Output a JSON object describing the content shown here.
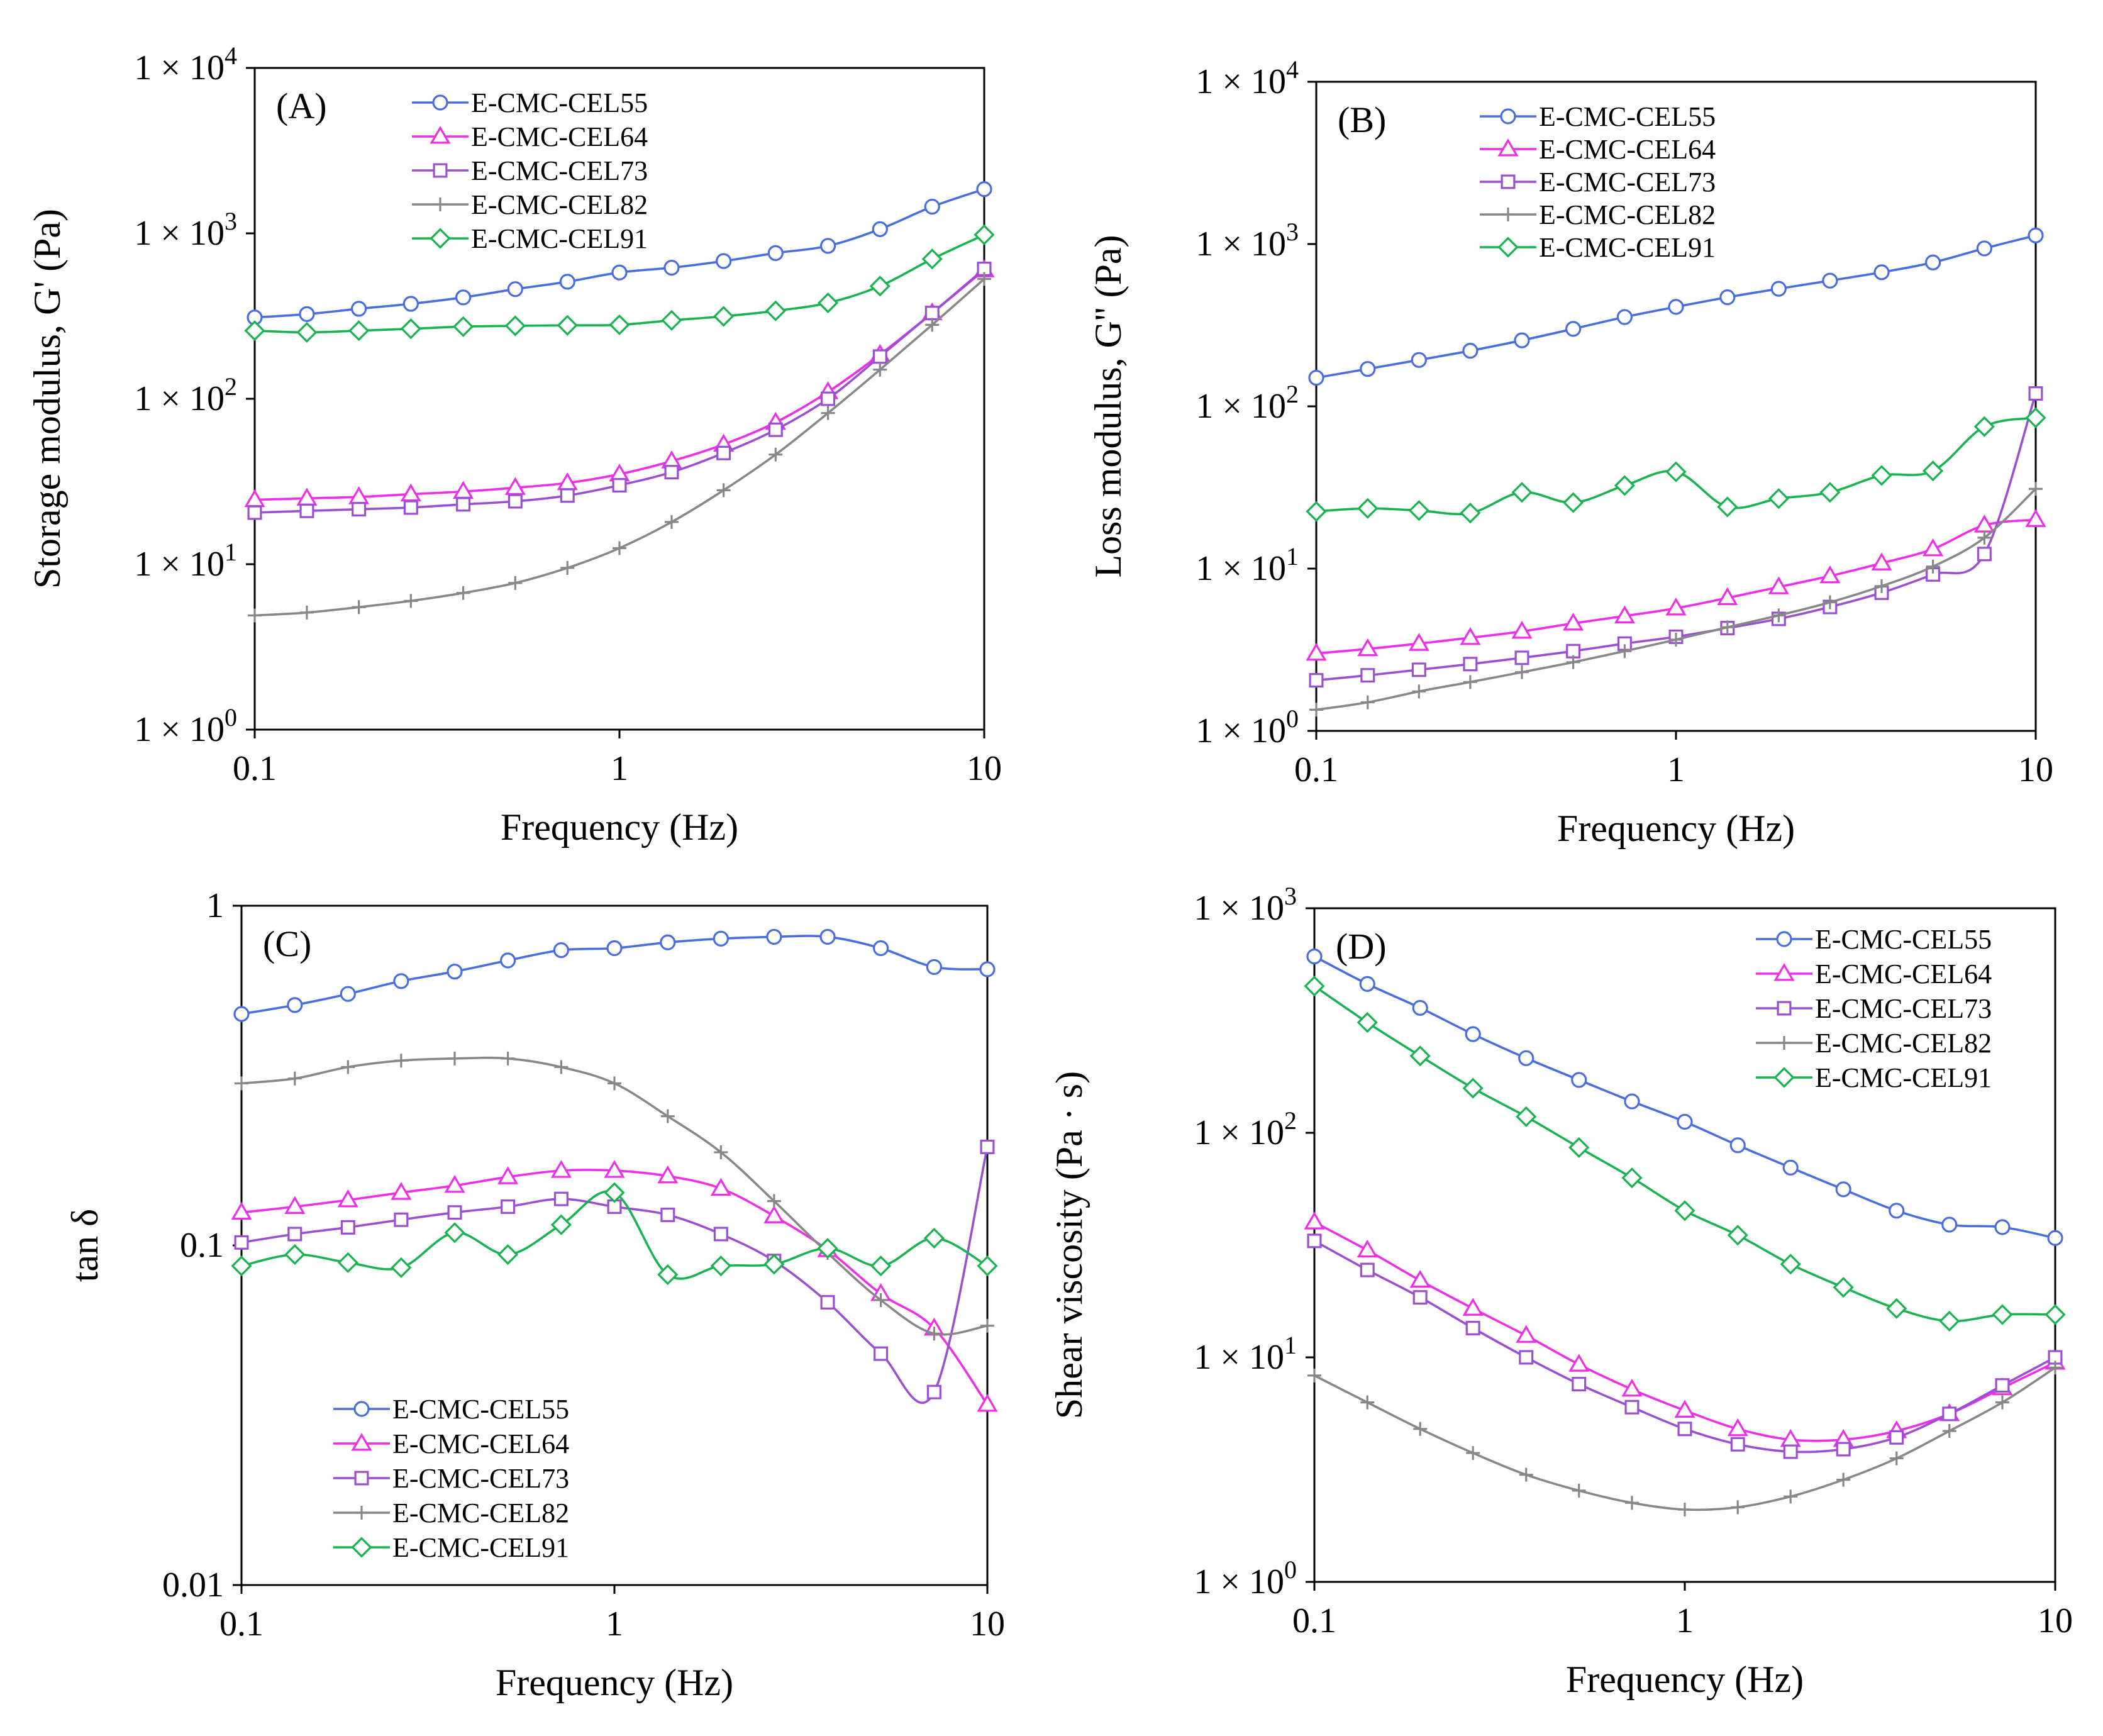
{
  "colors": {
    "E-CMC-CEL55": "#4a6ee0",
    "E-CMC-CEL64": "#ee2ee8",
    "E-CMC-CEL73": "#9b4fd1",
    "E-CMC-CEL82": "#888888",
    "E-CMC-CEL91": "#19b34f"
  },
  "markers": {
    "E-CMC-CEL55": "circle",
    "E-CMC-CEL64": "triangle",
    "E-CMC-CEL73": "square",
    "E-CMC-CEL82": "plus",
    "E-CMC-CEL91": "diamond"
  },
  "chart_data": [
    {
      "panel": "(A)",
      "type": "line",
      "xscale": "log",
      "yscale": "log",
      "xlabel": "Frequency (Hz)",
      "ylabel": "Storage modulus, G' (Pa)",
      "xlim": [
        0.1,
        10
      ],
      "ylim": [
        1,
        10000
      ],
      "xticks": [
        {
          "v": 0.1,
          "label": "0.1"
        },
        {
          "v": 1,
          "label": "1"
        },
        {
          "v": 10,
          "label": "10"
        }
      ],
      "yticks": [
        {
          "v": 1,
          "label": "1 × 10",
          "exp": "0"
        },
        {
          "v": 10,
          "label": "1 × 10",
          "exp": "1"
        },
        {
          "v": 100,
          "label": "1 × 10",
          "exp": "2"
        },
        {
          "v": 1000,
          "label": "1 × 10",
          "exp": "3"
        },
        {
          "v": 10000,
          "label": "1 × 10",
          "exp": "4"
        }
      ],
      "legend_position": "top-center",
      "x": [
        0.1,
        0.139,
        0.193,
        0.268,
        0.373,
        0.518,
        0.72,
        1.0,
        1.39,
        1.93,
        2.68,
        3.73,
        5.18,
        7.2,
        10.0
      ],
      "series": [
        {
          "name": "E-CMC-CEL55",
          "values": [
            310,
            325,
            350,
            375,
            410,
            460,
            510,
            580,
            620,
            680,
            760,
            840,
            1060,
            1450,
            1850
          ]
        },
        {
          "name": "E-CMC-CEL64",
          "values": [
            24.5,
            25,
            25.5,
            26.5,
            27.5,
            29,
            31,
            35,
            42,
            53,
            72,
            110,
            185,
            330,
            600
          ]
        },
        {
          "name": "E-CMC-CEL73",
          "values": [
            20.5,
            21,
            21.5,
            22,
            23,
            24,
            26,
            30,
            36,
            47,
            65,
            100,
            180,
            330,
            610
          ]
        },
        {
          "name": "E-CMC-CEL82",
          "values": [
            4.9,
            5.1,
            5.5,
            6.0,
            6.7,
            7.7,
            9.5,
            12.5,
            18,
            28,
            46,
            82,
            150,
            280,
            530
          ]
        },
        {
          "name": "E-CMC-CEL91",
          "values": [
            258,
            252,
            258,
            265,
            273,
            276,
            278,
            280,
            298,
            315,
            340,
            380,
            480,
            700,
            980
          ]
        }
      ]
    },
    {
      "panel": "(B)",
      "type": "line",
      "xscale": "log",
      "yscale": "log",
      "xlabel": "Frequency (Hz)",
      "ylabel": "Loss modulus, G'' (Pa)",
      "xlim": [
        0.1,
        10
      ],
      "ylim": [
        1,
        10000
      ],
      "xticks": [
        {
          "v": 0.1,
          "label": "0.1"
        },
        {
          "v": 1,
          "label": "1"
        },
        {
          "v": 10,
          "label": "10"
        }
      ],
      "yticks": [
        {
          "v": 1,
          "label": "1 × 10",
          "exp": "0"
        },
        {
          "v": 10,
          "label": "1 × 10",
          "exp": "1"
        },
        {
          "v": 100,
          "label": "1 × 10",
          "exp": "2"
        },
        {
          "v": 1000,
          "label": "1 × 10",
          "exp": "3"
        },
        {
          "v": 10000,
          "label": "1 × 10",
          "exp": "4"
        }
      ],
      "legend_position": "top-center",
      "x": [
        0.1,
        0.139,
        0.193,
        0.268,
        0.373,
        0.518,
        0.72,
        1.0,
        1.39,
        1.93,
        2.68,
        3.73,
        5.18,
        7.2,
        10.0
      ],
      "series": [
        {
          "name": "E-CMC-CEL55",
          "values": [
            150,
            170,
            193,
            220,
            255,
            300,
            355,
            410,
            470,
            530,
            595,
            670,
            770,
            940,
            1130
          ]
        },
        {
          "name": "E-CMC-CEL64",
          "values": [
            3.0,
            3.2,
            3.45,
            3.75,
            4.1,
            4.6,
            5.1,
            5.7,
            6.6,
            7.7,
            9.0,
            10.8,
            13.2,
            18.5,
            20
          ]
        },
        {
          "name": "E-CMC-CEL73",
          "values": [
            2.05,
            2.2,
            2.38,
            2.58,
            2.82,
            3.1,
            3.45,
            3.8,
            4.3,
            4.9,
            5.8,
            7.1,
            9.2,
            12.3,
            120
          ]
        },
        {
          "name": "E-CMC-CEL82",
          "values": [
            1.35,
            1.5,
            1.75,
            2.0,
            2.3,
            2.65,
            3.1,
            3.65,
            4.35,
            5.15,
            6.2,
            7.8,
            10.3,
            15.5,
            31
          ]
        },
        {
          "name": "E-CMC-CEL91",
          "values": [
            22.5,
            23.5,
            22.8,
            22.0,
            29.5,
            25.5,
            32.5,
            39.5,
            24.0,
            27.0,
            29.5,
            37.5,
            40.0,
            75.0,
            85.0
          ]
        }
      ]
    },
    {
      "panel": "(C)",
      "type": "line",
      "xscale": "log",
      "yscale": "log",
      "xlabel": "Frequency (Hz)",
      "ylabel": "tan δ",
      "xlim": [
        0.1,
        10
      ],
      "ylim": [
        0.01,
        1
      ],
      "xticks": [
        {
          "v": 0.1,
          "label": "0.1"
        },
        {
          "v": 1,
          "label": "1"
        },
        {
          "v": 10,
          "label": "10"
        }
      ],
      "yticks": [
        {
          "v": 0.01,
          "label": "0.01",
          "exp": ""
        },
        {
          "v": 0.1,
          "label": "0.1",
          "exp": ""
        },
        {
          "v": 1,
          "label": "1",
          "exp": ""
        }
      ],
      "legend_position": "bottom-left",
      "x": [
        0.1,
        0.139,
        0.193,
        0.268,
        0.373,
        0.518,
        0.72,
        1.0,
        1.39,
        1.93,
        2.68,
        3.73,
        5.18,
        7.2,
        10.0
      ],
      "series": [
        {
          "name": "E-CMC-CEL55",
          "values": [
            0.48,
            0.51,
            0.55,
            0.6,
            0.64,
            0.69,
            0.74,
            0.75,
            0.78,
            0.8,
            0.81,
            0.81,
            0.75,
            0.66,
            0.65
          ]
        },
        {
          "name": "E-CMC-CEL64",
          "values": [
            0.125,
            0.13,
            0.136,
            0.143,
            0.15,
            0.159,
            0.166,
            0.166,
            0.16,
            0.147,
            0.122,
            0.097,
            0.072,
            0.057,
            0.034
          ]
        },
        {
          "name": "E-CMC-CEL73",
          "values": [
            0.102,
            0.108,
            0.113,
            0.119,
            0.125,
            0.13,
            0.137,
            0.13,
            0.123,
            0.108,
            0.09,
            0.068,
            0.048,
            0.037,
            0.195
          ]
        },
        {
          "name": "E-CMC-CEL82",
          "values": [
            0.3,
            0.31,
            0.335,
            0.35,
            0.355,
            0.355,
            0.335,
            0.3,
            0.24,
            0.188,
            0.135,
            0.095,
            0.069,
            0.055,
            0.058
          ]
        },
        {
          "name": "E-CMC-CEL91",
          "values": [
            0.087,
            0.094,
            0.089,
            0.086,
            0.109,
            0.094,
            0.115,
            0.143,
            0.082,
            0.087,
            0.088,
            0.098,
            0.087,
            0.105,
            0.087
          ]
        }
      ]
    },
    {
      "panel": "(D)",
      "type": "line",
      "xscale": "log",
      "yscale": "log",
      "xlabel": "Frequency (Hz)",
      "ylabel": "Shear viscosity (Pa · s)",
      "xlim": [
        0.1,
        10
      ],
      "ylim": [
        1,
        1000
      ],
      "xticks": [
        {
          "v": 0.1,
          "label": "0.1"
        },
        {
          "v": 1,
          "label": "1"
        },
        {
          "v": 10,
          "label": "10"
        }
      ],
      "yticks": [
        {
          "v": 1,
          "label": "1 × 10",
          "exp": "0"
        },
        {
          "v": 10,
          "label": "1 × 10",
          "exp": "1"
        },
        {
          "v": 100,
          "label": "1 × 10",
          "exp": "2"
        },
        {
          "v": 1000,
          "label": "1 × 10",
          "exp": "3"
        }
      ],
      "legend_position": "top-right",
      "x": [
        0.1,
        0.139,
        0.193,
        0.268,
        0.373,
        0.518,
        0.72,
        1.0,
        1.39,
        1.93,
        2.68,
        3.73,
        5.18,
        7.2,
        10.0
      ],
      "series": [
        {
          "name": "E-CMC-CEL55",
          "values": [
            610,
            460,
            360,
            275,
            215,
            172,
            138,
            112,
            88,
            70,
            56,
            45,
            39,
            38,
            34
          ]
        },
        {
          "name": "E-CMC-CEL64",
          "values": [
            40,
            30,
            22,
            16.5,
            12.5,
            9.3,
            7.2,
            5.8,
            4.8,
            4.3,
            4.3,
            4.7,
            5.6,
            7.3,
            9.5
          ]
        },
        {
          "name": "E-CMC-CEL73",
          "values": [
            33,
            24.5,
            18.5,
            13.5,
            10,
            7.6,
            6.0,
            4.8,
            4.1,
            3.8,
            3.9,
            4.4,
            5.6,
            7.5,
            10
          ]
        },
        {
          "name": "E-CMC-CEL82",
          "values": [
            8.3,
            6.3,
            4.8,
            3.75,
            3.0,
            2.55,
            2.25,
            2.1,
            2.15,
            2.4,
            2.85,
            3.55,
            4.7,
            6.3,
            9
          ]
        },
        {
          "name": "E-CMC-CEL91",
          "values": [
            450,
            310,
            220,
            158,
            118,
            86,
            63,
            45,
            35,
            26,
            20.5,
            16.5,
            14.5,
            15.5,
            15.5
          ]
        }
      ]
    }
  ]
}
